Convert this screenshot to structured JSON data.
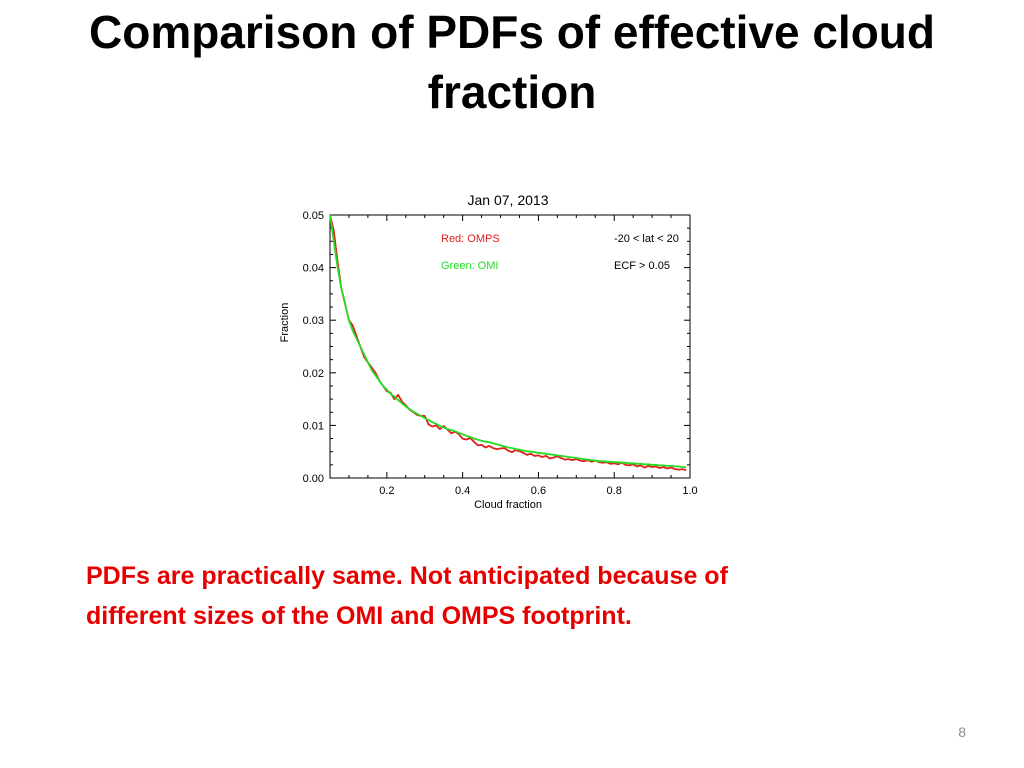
{
  "slide": {
    "title_line1": "Comparison of PDFs of effective cloud",
    "title_line2": "fraction",
    "note_line1": "PDFs are practically same. Not anticipated because of",
    "note_line2": "different sizes of the OMI and OMPS footprint.",
    "note_color": "#e60000",
    "page_number": "8"
  },
  "chart_data": {
    "type": "line",
    "title": "Jan 07, 2013",
    "xlabel": "Cloud fraction",
    "ylabel": "Fraction",
    "xlim": [
      0.05,
      1.0
    ],
    "ylim": [
      0.0,
      0.05
    ],
    "x_ticks": [
      "0.2",
      "0.4",
      "0.6",
      "0.8",
      "1.0"
    ],
    "y_ticks": [
      "0.00",
      "0.01",
      "0.02",
      "0.03",
      "0.04",
      "0.05"
    ],
    "grid": false,
    "annotations": {
      "series_red_label": "Red: OMPS",
      "series_green_label": "Green: OMI",
      "lat_range": "-20 < lat < 20",
      "ecf_threshold": "ECF > 0.05"
    },
    "x": [
      0.05,
      0.06,
      0.07,
      0.08,
      0.09,
      0.1,
      0.11,
      0.12,
      0.13,
      0.14,
      0.15,
      0.16,
      0.17,
      0.18,
      0.19,
      0.2,
      0.21,
      0.22,
      0.23,
      0.24,
      0.25,
      0.26,
      0.27,
      0.28,
      0.29,
      0.3,
      0.31,
      0.32,
      0.33,
      0.34,
      0.35,
      0.36,
      0.37,
      0.38,
      0.39,
      0.4,
      0.41,
      0.42,
      0.43,
      0.44,
      0.45,
      0.46,
      0.47,
      0.48,
      0.49,
      0.5,
      0.51,
      0.52,
      0.53,
      0.54,
      0.55,
      0.56,
      0.57,
      0.58,
      0.59,
      0.6,
      0.61,
      0.62,
      0.63,
      0.64,
      0.65,
      0.66,
      0.67,
      0.68,
      0.69,
      0.7,
      0.71,
      0.72,
      0.73,
      0.74,
      0.75,
      0.76,
      0.77,
      0.78,
      0.79,
      0.8,
      0.81,
      0.82,
      0.83,
      0.84,
      0.85,
      0.86,
      0.87,
      0.88,
      0.89,
      0.9,
      0.91,
      0.92,
      0.93,
      0.94,
      0.95,
      0.96,
      0.97,
      0.98,
      0.99
    ],
    "series": [
      {
        "name": "Red: OMPS",
        "color": "#e0201c",
        "values": [
          0.05,
          0.047,
          0.041,
          0.036,
          0.033,
          0.03,
          0.029,
          0.027,
          0.025,
          0.023,
          0.022,
          0.021,
          0.02,
          0.0185,
          0.0175,
          0.0165,
          0.0162,
          0.015,
          0.0158,
          0.0145,
          0.0138,
          0.013,
          0.0125,
          0.012,
          0.0118,
          0.0118,
          0.0102,
          0.0098,
          0.01,
          0.0093,
          0.0099,
          0.0092,
          0.0085,
          0.0088,
          0.0083,
          0.0075,
          0.0073,
          0.0076,
          0.0069,
          0.0062,
          0.0063,
          0.0058,
          0.0061,
          0.0057,
          0.0055,
          0.0056,
          0.0057,
          0.0052,
          0.0049,
          0.0053,
          0.0051,
          0.0048,
          0.0044,
          0.0046,
          0.0042,
          0.0043,
          0.004,
          0.0042,
          0.0037,
          0.0039,
          0.0041,
          0.0038,
          0.0035,
          0.0036,
          0.0034,
          0.0036,
          0.0033,
          0.0032,
          0.0034,
          0.0031,
          0.0033,
          0.003,
          0.0029,
          0.003,
          0.0027,
          0.0028,
          0.0026,
          0.0029,
          0.0025,
          0.0024,
          0.0026,
          0.0022,
          0.0024,
          0.002,
          0.0023,
          0.0021,
          0.0022,
          0.0019,
          0.0021,
          0.0018,
          0.002,
          0.0017,
          0.0016,
          0.0017,
          0.0015
        ]
      },
      {
        "name": "Green: OMI",
        "color": "#22dd22",
        "values": [
          0.05,
          0.045,
          0.04,
          0.036,
          0.033,
          0.03,
          0.028,
          0.0265,
          0.025,
          0.0235,
          0.022,
          0.0205,
          0.0195,
          0.0185,
          0.0175,
          0.0168,
          0.016,
          0.0155,
          0.0148,
          0.0142,
          0.0136,
          0.0131,
          0.0126,
          0.0122,
          0.0118,
          0.0114,
          0.011,
          0.0106,
          0.0103,
          0.0099,
          0.0096,
          0.0093,
          0.0091,
          0.0089,
          0.0086,
          0.0083,
          0.008,
          0.0078,
          0.0075,
          0.0073,
          0.0071,
          0.0069,
          0.0068,
          0.0066,
          0.0064,
          0.0062,
          0.006,
          0.0058,
          0.0057,
          0.0055,
          0.0054,
          0.0052,
          0.0051,
          0.005,
          0.0049,
          0.0048,
          0.0047,
          0.0046,
          0.0045,
          0.0044,
          0.0043,
          0.0042,
          0.0041,
          0.004,
          0.0039,
          0.0038,
          0.0037,
          0.0036,
          0.0035,
          0.0034,
          0.0033,
          0.0032,
          0.0032,
          0.0031,
          0.0031,
          0.003,
          0.003,
          0.0029,
          0.0029,
          0.0028,
          0.0028,
          0.0027,
          0.0027,
          0.0026,
          0.0026,
          0.0025,
          0.0025,
          0.0024,
          0.0024,
          0.0023,
          0.0023,
          0.0022,
          0.0022,
          0.0021,
          0.0021
        ]
      }
    ]
  }
}
